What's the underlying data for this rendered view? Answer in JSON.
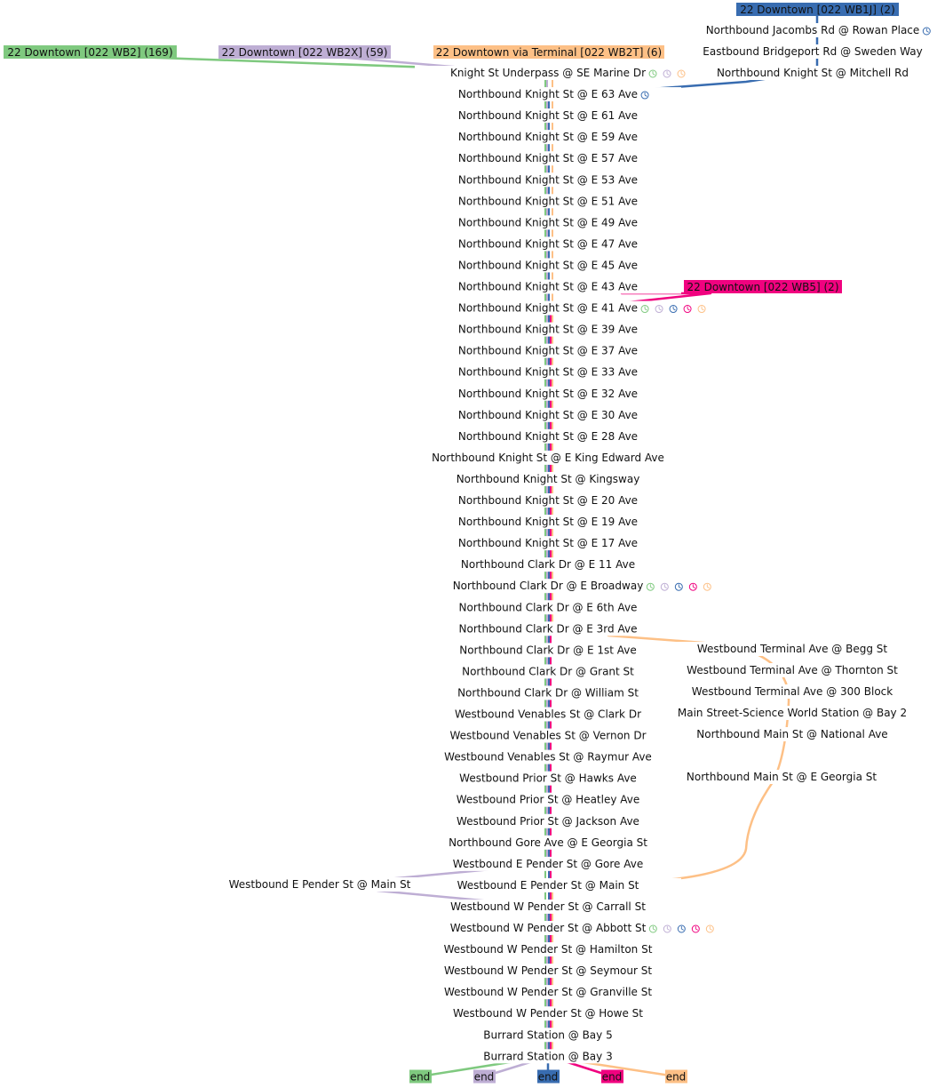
{
  "colors": {
    "WB2": "#7fc97f",
    "WB2X": "#beaed4",
    "WB1J": "#386cb0",
    "WB5": "#f0027f",
    "WB2T": "#fdc086"
  },
  "routes": [
    {
      "id": "WB2",
      "label": "22 Downtown [022 WB2] (169)"
    },
    {
      "id": "WB2X",
      "label": "22 Downtown [022 WB2X] (59)"
    },
    {
      "id": "WB2T",
      "label": "22 Downtown via Terminal [022 WB2T] (6)"
    },
    {
      "id": "WB1J",
      "label": "22 Downtown [022 WB1J] (2)"
    },
    {
      "id": "WB5",
      "label": "22 Downtown [022 WB5] (2)"
    }
  ],
  "trunk_stops": [
    {
      "name": "Knight St Underpass @ SE Marine Dr",
      "timepoints": [
        "WB2",
        "WB2X",
        "WB2T"
      ]
    },
    {
      "name": "Northbound Knight St @ E 63 Ave",
      "timepoints": [
        "WB1J"
      ]
    },
    {
      "name": "Northbound Knight St @ E 61 Ave",
      "timepoints": []
    },
    {
      "name": "Northbound Knight St @ E 59 Ave",
      "timepoints": []
    },
    {
      "name": "Northbound Knight St @ E 57 Ave",
      "timepoints": []
    },
    {
      "name": "Northbound Knight St @ E 53 Ave",
      "timepoints": []
    },
    {
      "name": "Northbound Knight St @ E 51 Ave",
      "timepoints": []
    },
    {
      "name": "Northbound Knight St @ E 49 Ave",
      "timepoints": []
    },
    {
      "name": "Northbound Knight St @ E 47 Ave",
      "timepoints": []
    },
    {
      "name": "Northbound Knight St @ E 45 Ave",
      "timepoints": []
    },
    {
      "name": "Northbound Knight St @ E 43 Ave",
      "timepoints": []
    },
    {
      "name": "Northbound Knight St @ E 41 Ave",
      "timepoints": [
        "WB2",
        "WB2X",
        "WB1J",
        "WB5",
        "WB2T"
      ]
    },
    {
      "name": "Northbound Knight St @ E 39 Ave",
      "timepoints": []
    },
    {
      "name": "Northbound Knight St @ E 37 Ave",
      "timepoints": []
    },
    {
      "name": "Northbound Knight St @ E 33 Ave",
      "timepoints": []
    },
    {
      "name": "Northbound Knight St @ E 32 Ave",
      "timepoints": []
    },
    {
      "name": "Northbound Knight St @ E 30 Ave",
      "timepoints": []
    },
    {
      "name": "Northbound Knight St @ E 28 Ave",
      "timepoints": []
    },
    {
      "name": "Northbound Knight St @ E King Edward Ave",
      "timepoints": []
    },
    {
      "name": "Northbound Knight St @ Kingsway",
      "timepoints": []
    },
    {
      "name": "Northbound Knight St @ E 20 Ave",
      "timepoints": []
    },
    {
      "name": "Northbound Knight St @ E 19 Ave",
      "timepoints": []
    },
    {
      "name": "Northbound Knight St @ E 17 Ave",
      "timepoints": []
    },
    {
      "name": "Northbound Clark Dr @ E 11 Ave",
      "timepoints": []
    },
    {
      "name": "Northbound Clark Dr @ E Broadway",
      "timepoints": [
        "WB2",
        "WB2X",
        "WB1J",
        "WB5",
        "WB2T"
      ]
    },
    {
      "name": "Northbound Clark Dr @ E 6th Ave",
      "timepoints": []
    },
    {
      "name": "Northbound Clark Dr @ E 3rd Ave",
      "timepoints": []
    },
    {
      "name": "Northbound Clark Dr @ E 1st Ave",
      "timepoints": []
    },
    {
      "name": "Northbound Clark Dr @ Grant St",
      "timepoints": []
    },
    {
      "name": "Northbound Clark Dr @ William St",
      "timepoints": []
    },
    {
      "name": "Westbound Venables St @ Clark Dr",
      "timepoints": []
    },
    {
      "name": "Westbound Venables St @ Vernon Dr",
      "timepoints": []
    },
    {
      "name": "Westbound Venables St @ Raymur Ave",
      "timepoints": []
    },
    {
      "name": "Westbound Prior St @ Hawks Ave",
      "timepoints": []
    },
    {
      "name": "Westbound Prior St @ Heatley Ave",
      "timepoints": []
    },
    {
      "name": "Westbound Prior St @ Jackson Ave",
      "timepoints": []
    },
    {
      "name": "Northbound Gore Ave @ E Georgia St",
      "timepoints": []
    },
    {
      "name": "Westbound E Pender St @ Gore Ave",
      "timepoints": []
    },
    {
      "name": "Westbound E Pender St @ Main St",
      "timepoints": []
    },
    {
      "name": "Westbound W Pender St @ Carrall St",
      "timepoints": []
    },
    {
      "name": "Westbound W Pender St @ Abbott St",
      "timepoints": [
        "WB2",
        "WB2X",
        "WB1J",
        "WB5",
        "WB2T"
      ]
    },
    {
      "name": "Westbound W Pender St @ Hamilton St",
      "timepoints": []
    },
    {
      "name": "Westbound W Pender St @ Seymour St",
      "timepoints": []
    },
    {
      "name": "Westbound W Pender St @ Granville St",
      "timepoints": []
    },
    {
      "name": "Westbound W Pender St @ Howe St",
      "timepoints": []
    },
    {
      "name": "Burrard Station @ Bay 5",
      "timepoints": []
    },
    {
      "name": "Burrard Station @ Bay 3",
      "timepoints": []
    }
  ],
  "branch_wb1j_stops": [
    {
      "name": "Northbound Jacombs Rd @ Rowan Place",
      "timepoints": [
        "WB1J"
      ]
    },
    {
      "name": "Eastbound Bridgeport Rd @ Sweden Way",
      "timepoints": []
    },
    {
      "name": "Northbound Knight St @ Mitchell Rd",
      "timepoints": []
    }
  ],
  "branch_terminal_stops": [
    {
      "name": "Westbound Terminal Ave @ Begg St"
    },
    {
      "name": "Westbound Terminal Ave @ Thornton St"
    },
    {
      "name": "Westbound Terminal Ave @ 300 Block"
    },
    {
      "name": "Main Street-Science World Station @ Bay 2"
    },
    {
      "name": "Northbound Main St @ National Ave"
    },
    {
      "name": "Northbound Main St @ E Georgia St"
    }
  ],
  "branch_wb2x_stop": {
    "name": "Westbound E Pender St @ Main St"
  },
  "end_label": "end",
  "end_routes": [
    "WB2",
    "WB2X",
    "WB1J",
    "WB5",
    "WB2T"
  ]
}
